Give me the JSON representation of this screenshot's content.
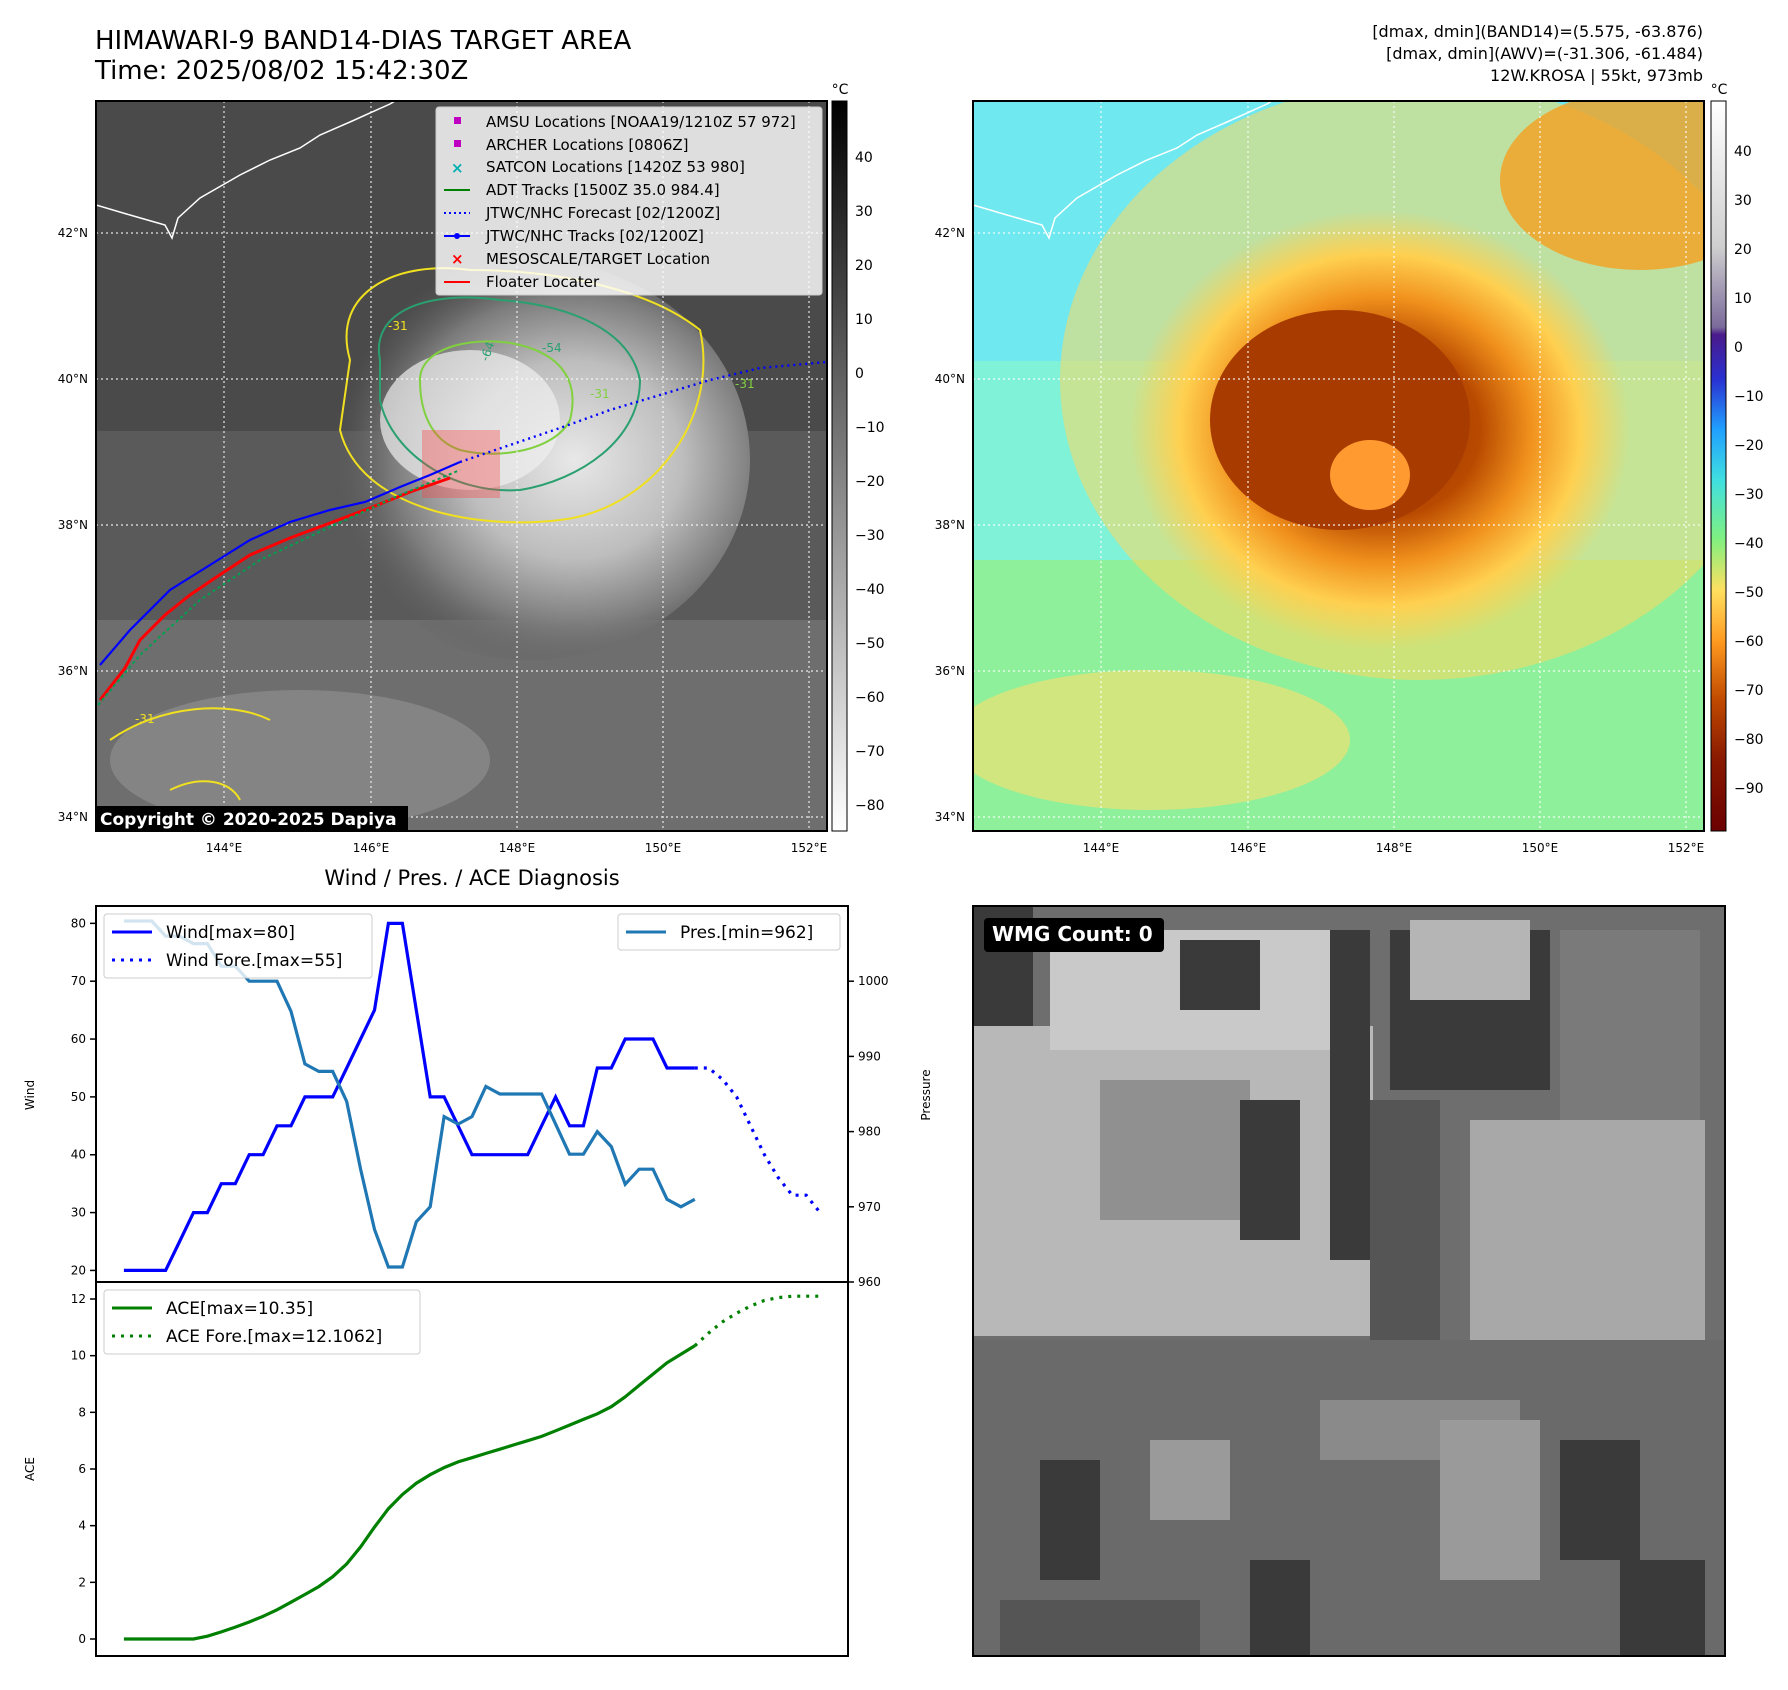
{
  "header": {
    "title_line1": "HIMAWARI-9 BAND14-DIAS TARGET AREA",
    "title_line2": "Time: 2025/08/02 15:42:30Z",
    "stats_line1": "[dmax, dmin](BAND14)=(5.575, -63.876)",
    "stats_line2": "[dmax, dmin](AWV)=(-31.306, -61.484)",
    "stats_line3": "12W.KROSA | 55kt, 973mb"
  },
  "map": {
    "lat_labels": [
      "42°N",
      "40°N",
      "38°N",
      "36°N",
      "34°N"
    ],
    "lon_labels": [
      "144°E",
      "146°E",
      "148°E",
      "150°E",
      "152°E"
    ],
    "copyright": "Copyright © 2020-2025 Dapiya",
    "contour_labels": [
      "-31",
      "-64",
      "-54",
      "-31",
      "-31",
      "-31"
    ],
    "legend": [
      {
        "label": "AMSU Locations [NOAA19/1210Z 57 972]",
        "marker": "square",
        "color": "#c000c0"
      },
      {
        "label": "ARCHER Locations [0806Z]",
        "marker": "square",
        "color": "#c000c0"
      },
      {
        "label": "SATCON Locations [1420Z 53 980]",
        "marker": "x",
        "color": "#00b0b0"
      },
      {
        "label": "ADT Tracks [1500Z 35.0 984.4]",
        "marker": "line",
        "color": "#008000"
      },
      {
        "label": "JTWC/NHC Forecast [02/1200Z]",
        "marker": "dotted",
        "color": "#0000ff"
      },
      {
        "label": "JTWC/NHC Tracks [02/1200Z]",
        "marker": "line-dot",
        "color": "#0000ff"
      },
      {
        "label": "MESOSCALE/TARGET Location",
        "marker": "x",
        "color": "#ff0000"
      },
      {
        "label": "Floater Locater",
        "marker": "line",
        "color": "#ff0000"
      }
    ]
  },
  "colorbar_gray": {
    "unit": "°C",
    "ticks": [
      "40",
      "30",
      "20",
      "10",
      "0",
      "−10",
      "−20",
      "−30",
      "−40",
      "−50",
      "−60",
      "−70",
      "−80"
    ]
  },
  "colorbar_color": {
    "unit": "°C",
    "ticks": [
      "40",
      "30",
      "20",
      "10",
      "0",
      "−10",
      "−20",
      "−30",
      "−40",
      "−50",
      "−60",
      "−70",
      "−80",
      "−90"
    ]
  },
  "wmg": {
    "label": "WMG Count: 0"
  },
  "chart_data": [
    {
      "type": "line",
      "title": "Wind / Pres. / ACE Diagnosis",
      "ylabel": "Wind",
      "ylabel_right": "Pressure",
      "ylim": [
        18,
        83
      ],
      "ylim_right": [
        960,
        1010
      ],
      "yticks": [
        20,
        30,
        40,
        50,
        60,
        70,
        80
      ],
      "yticks_right": [
        960,
        970,
        980,
        990,
        1000
      ],
      "series": [
        {
          "name": "Wind[max=80]",
          "axis": "left",
          "style": "solid",
          "color": "#0000ff",
          "x": [
            0,
            1,
            2,
            3,
            4,
            5,
            6,
            7,
            8,
            9,
            10,
            11,
            12,
            13,
            14,
            15,
            16,
            17,
            18,
            19,
            20,
            21,
            22,
            23,
            24,
            25,
            26,
            27,
            28,
            29,
            30,
            31,
            32,
            33,
            34,
            35,
            36,
            37,
            38,
            39,
            40,
            41
          ],
          "values": [
            20,
            20,
            20,
            20,
            25,
            30,
            30,
            35,
            35,
            40,
            40,
            45,
            45,
            50,
            50,
            50,
            55,
            60,
            65,
            80,
            80,
            65,
            50,
            50,
            45,
            40,
            40,
            40,
            40,
            40,
            45,
            50,
            45,
            45,
            55,
            55,
            60,
            60,
            60,
            55,
            55,
            55
          ]
        },
        {
          "name": "Wind Fore.[max=55]",
          "axis": "left",
          "style": "dotted",
          "color": "#0000ff",
          "x": [
            41,
            42,
            43,
            44,
            45,
            46,
            47,
            48,
            49,
            50
          ],
          "values": [
            55,
            55,
            53,
            50,
            45,
            40,
            36,
            33,
            33,
            30
          ]
        },
        {
          "name": "Pres.[min=962]",
          "axis": "right",
          "style": "solid",
          "color": "#1f77b4",
          "x": [
            0,
            1,
            2,
            3,
            4,
            5,
            6,
            7,
            8,
            9,
            10,
            11,
            12,
            13,
            14,
            15,
            16,
            17,
            18,
            19,
            20,
            21,
            22,
            23,
            24,
            25,
            26,
            27,
            28,
            29,
            30,
            31,
            32,
            33,
            34,
            35,
            36,
            37,
            38,
            39,
            40,
            41
          ],
          "values": [
            1008,
            1008,
            1008,
            1006,
            1006,
            1005,
            1005,
            1002,
            1002,
            1000,
            1000,
            1000,
            996,
            989,
            988,
            988,
            984,
            975,
            967,
            962,
            962,
            968,
            970,
            982,
            981,
            982,
            986,
            985,
            985,
            985,
            985,
            981,
            977,
            977,
            980,
            978,
            973,
            975,
            975,
            971,
            970,
            971
          ]
        }
      ]
    },
    {
      "type": "line",
      "ylabel": "ACE",
      "ylim": [
        -0.6,
        12.6
      ],
      "yticks": [
        0,
        2,
        4,
        6,
        8,
        10,
        12
      ],
      "series": [
        {
          "name": "ACE[max=10.35]",
          "style": "solid",
          "color": "#008000",
          "x": [
            0,
            2,
            4,
            5,
            6,
            7,
            8,
            9,
            10,
            11,
            12,
            13,
            14,
            15,
            16,
            17,
            18,
            19,
            20,
            21,
            22,
            23,
            24,
            25,
            26,
            27,
            28,
            29,
            30,
            31,
            32,
            33,
            34,
            35,
            36,
            37,
            38,
            39,
            40,
            41
          ],
          "values": [
            0,
            0,
            0,
            0,
            0.1,
            0.25,
            0.42,
            0.6,
            0.8,
            1.03,
            1.3,
            1.57,
            1.85,
            2.2,
            2.65,
            3.25,
            3.95,
            4.6,
            5.1,
            5.5,
            5.8,
            6.05,
            6.25,
            6.4,
            6.55,
            6.7,
            6.85,
            7.0,
            7.15,
            7.35,
            7.55,
            7.75,
            7.95,
            8.2,
            8.55,
            8.95,
            9.35,
            9.75,
            10.05,
            10.35
          ]
        },
        {
          "name": "ACE Fore.[max=12.1062]",
          "style": "dotted",
          "color": "#008000",
          "x": [
            41,
            42,
            43,
            44,
            45,
            46,
            47,
            48,
            49,
            50
          ],
          "values": [
            10.35,
            10.8,
            11.2,
            11.5,
            11.75,
            11.95,
            12.05,
            12.1,
            12.1,
            12.1
          ]
        }
      ]
    }
  ]
}
